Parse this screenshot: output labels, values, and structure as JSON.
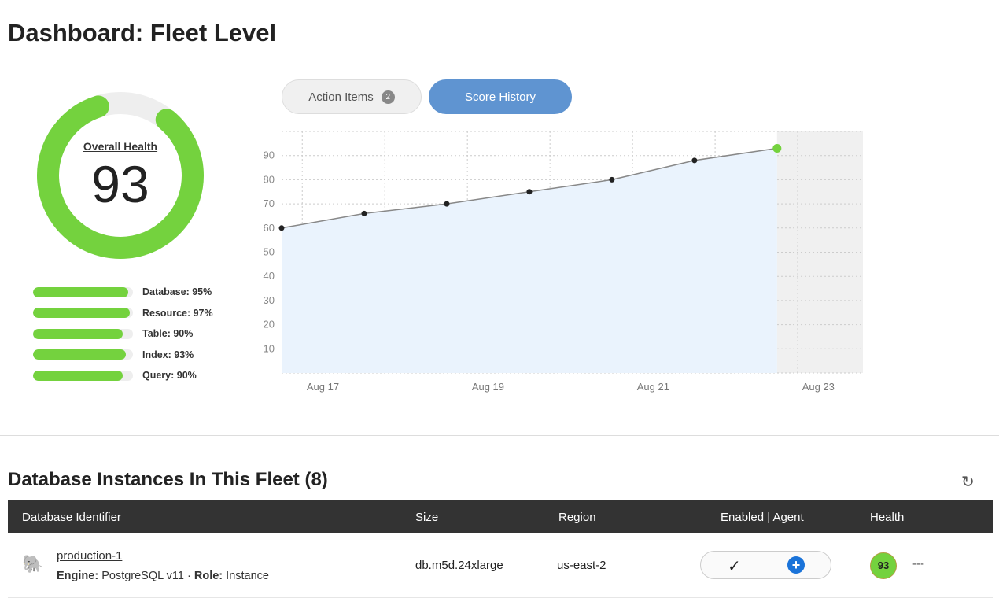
{
  "title": "Dashboard: Fleet Level",
  "overall": {
    "label": "Overall Health",
    "value": 93,
    "color": "#74d23e"
  },
  "categories": [
    {
      "label": "Database: 95%",
      "value": 95
    },
    {
      "label": "Resource: 97%",
      "value": 97
    },
    {
      "label": "Table: 90%",
      "value": 90
    },
    {
      "label": "Index: 93%",
      "value": 93
    },
    {
      "label": "Query: 90%",
      "value": 90
    }
  ],
  "tabs": {
    "action_items": "Action Items",
    "action_count": "2",
    "score_history": "Score History"
  },
  "chart_data": {
    "type": "area",
    "x": [
      16.5,
      17.5,
      18.5,
      19.5,
      20.5,
      21.5,
      22.5
    ],
    "values": [
      60,
      66,
      70,
      75,
      80,
      88,
      93
    ],
    "ylim": [
      0,
      100
    ],
    "yticks": [
      "10",
      "20",
      "30",
      "40",
      "50",
      "60",
      "70",
      "80",
      "90"
    ],
    "xticks": [
      {
        "x": 17,
        "label": "Aug 17"
      },
      {
        "x": 19,
        "label": "Aug 19"
      },
      {
        "x": 21,
        "label": "Aug 21"
      },
      {
        "x": 23,
        "label": "Aug 23"
      }
    ],
    "xlim": [
      16.5,
      23.54
    ],
    "grid": true
  },
  "section": {
    "title": "Database Instances In This Fleet (8)"
  },
  "table": {
    "headers": [
      "Database Identifier",
      "Size",
      "Region",
      "Enabled | Agent",
      "Health"
    ],
    "rows": [
      {
        "name": "production-1",
        "engine_label": "Engine:",
        "engine": "PostgreSQL v11",
        "sep": "·",
        "role_label": "Role:",
        "role": "Instance",
        "size": "db.m5d.24xlarge",
        "region": "us-east-2",
        "enabled": "✓",
        "health": "93",
        "more": "---"
      }
    ]
  }
}
